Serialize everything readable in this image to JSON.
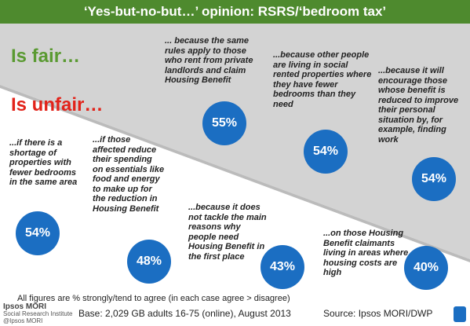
{
  "header": {
    "title": "‘Yes-but-no-but…’ opinion: RSRS/‘bedroom tax’"
  },
  "fair": {
    "heading": "Is fair…",
    "items": [
      {
        "text": "... because the same rules apply to those who rent from private landlords and claim Housing Benefit",
        "percent": "55%"
      },
      {
        "text": "...because other people are living in social rented properties where they have fewer bedrooms than they need",
        "percent": "54%"
      },
      {
        "text": "...because it will encourage those whose benefit is reduced to improve their personal situation by, for example, finding work",
        "percent": "54%"
      }
    ]
  },
  "unfair": {
    "heading": "Is unfair…",
    "items": [
      {
        "text": "...if there is a shortage of properties with fewer bedrooms in the same area",
        "percent": "54%"
      },
      {
        "text": "...if those affected reduce their spending on essentials like food and energy to make up for the reduction in Housing Benefit",
        "percent": "48%"
      },
      {
        "text": "...because it does not tackle the main reasons why people need Housing Benefit in the first place",
        "percent": "43%"
      },
      {
        "text": "...on those Housing Benefit claimants living in areas where housing costs are high",
        "percent": "40%"
      }
    ]
  },
  "footer": {
    "note": "All figures are % strongly/tend to agree (in each case agree > disagree)",
    "logo": [
      "Ipsos MORI",
      "Social Research Institute",
      "@Ipsos MORI"
    ],
    "base": "Base:  2,029 GB adults 16-75 (online), August 2013",
    "source": "Source: Ipsos MORI/DWP"
  }
}
